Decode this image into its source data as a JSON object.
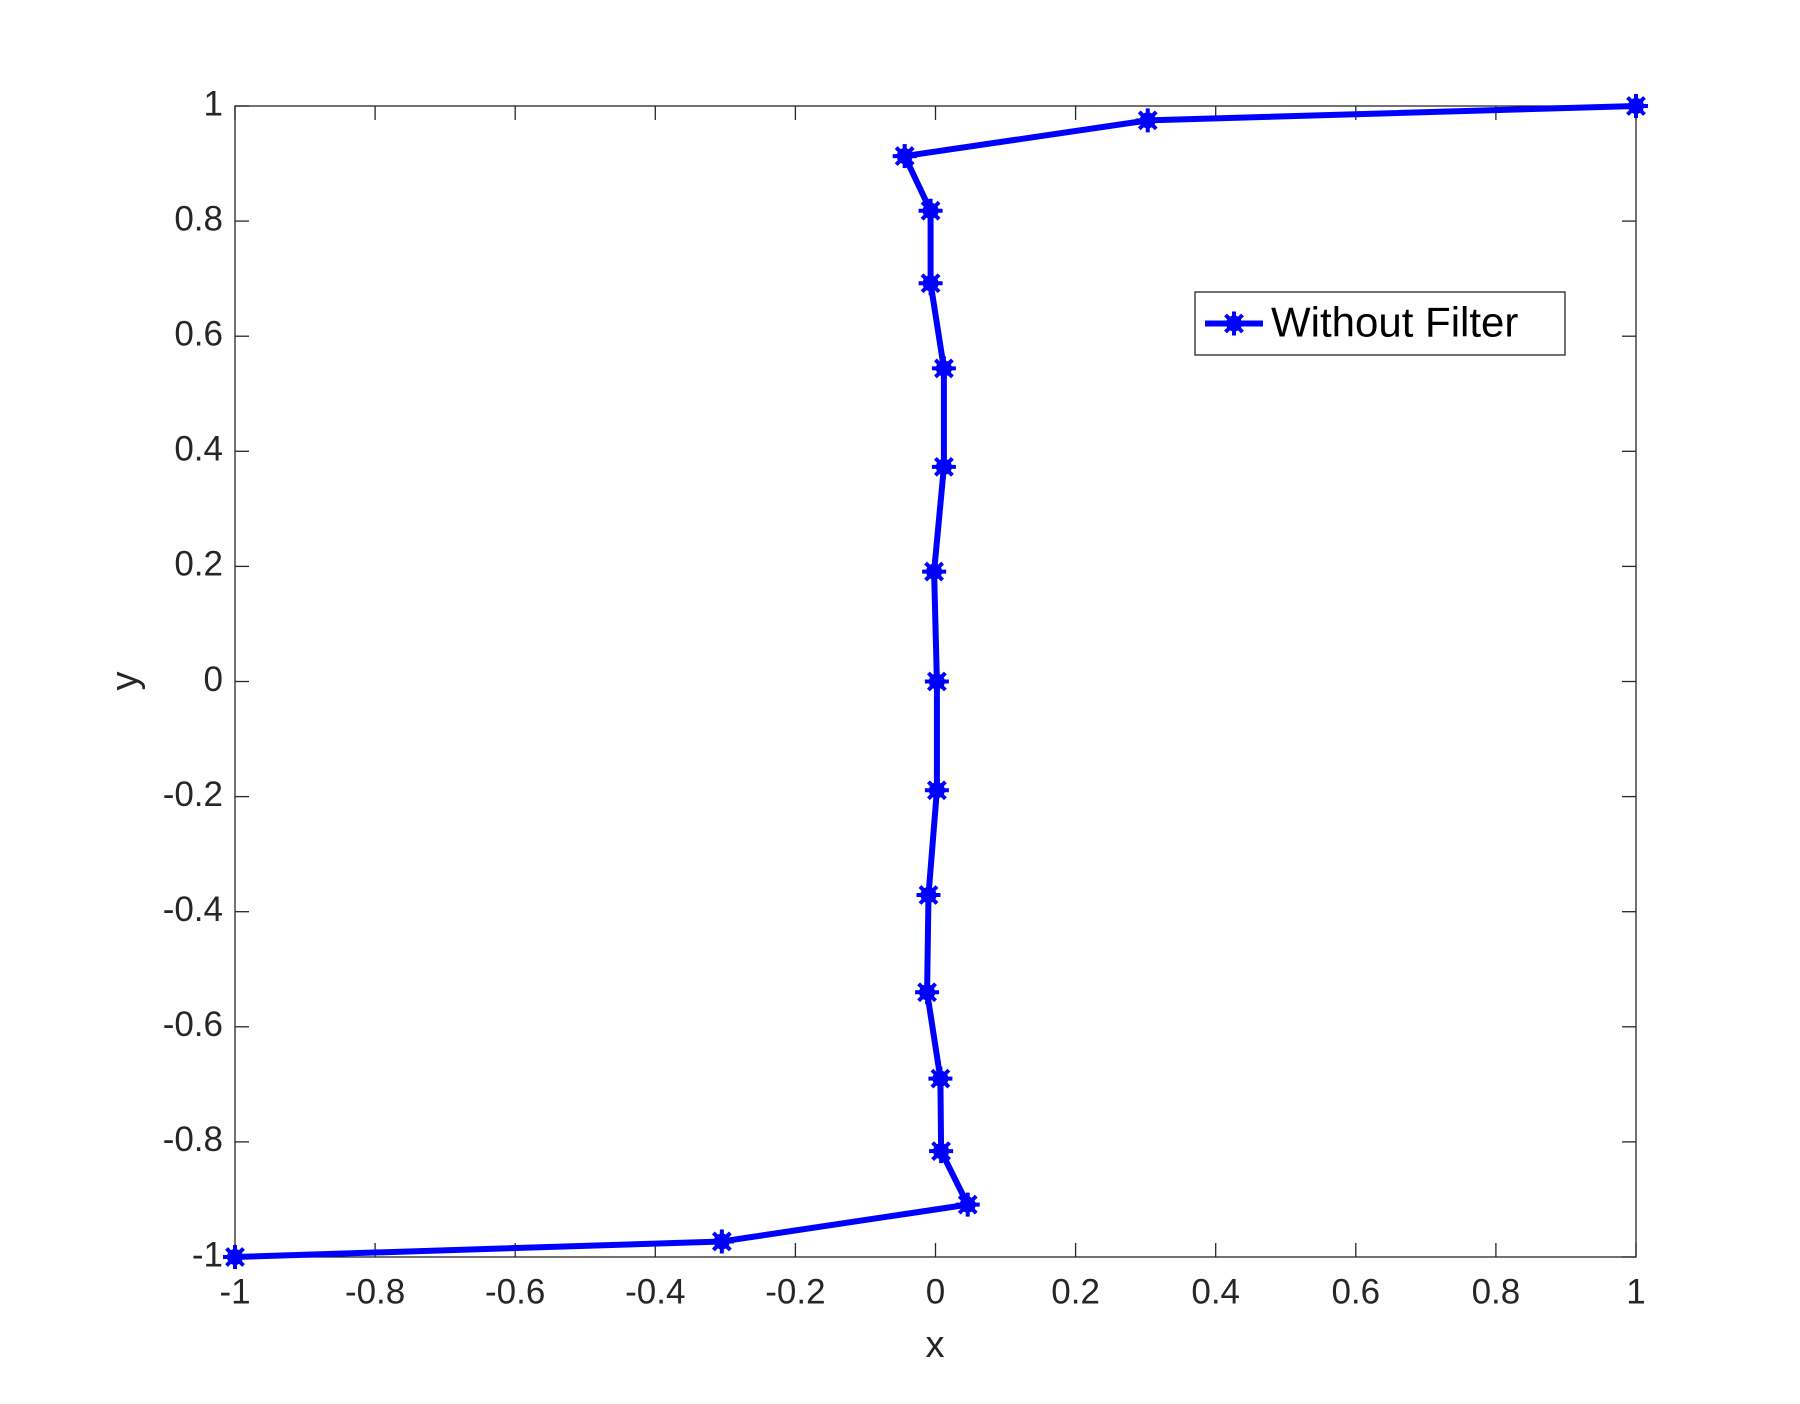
{
  "chart_data": {
    "type": "line",
    "xlabel": "x",
    "ylabel": "y",
    "x": [
      -1,
      -0.305,
      0.046,
      0.008,
      0.007,
      -0.012,
      -0.01,
      0.002,
      0.002,
      -0.002,
      0.012,
      0.012,
      -0.007,
      -0.007,
      -0.044,
      0.303,
      1
    ],
    "series": [
      {
        "name": "Without Filter",
        "color": "#0000ff",
        "values": [
          -1,
          -0.973,
          -0.909,
          -0.816,
          -0.69,
          -0.54,
          -0.371,
          -0.189,
          0,
          0.191,
          0.373,
          0.544,
          0.692,
          0.818,
          0.913,
          0.975,
          1
        ]
      }
    ],
    "xlim": [
      -1,
      1
    ],
    "ylim": [
      -1,
      1
    ],
    "xticks": [
      -1,
      -0.8,
      -0.6,
      -0.4,
      -0.2,
      0,
      0.2,
      0.4,
      0.6,
      0.8,
      1
    ],
    "yticks": [
      -1,
      -0.8,
      -0.6,
      -0.4,
      -0.2,
      0,
      0.2,
      0.4,
      0.6,
      0.8,
      1
    ],
    "grid": false,
    "legend": "northeast"
  }
}
